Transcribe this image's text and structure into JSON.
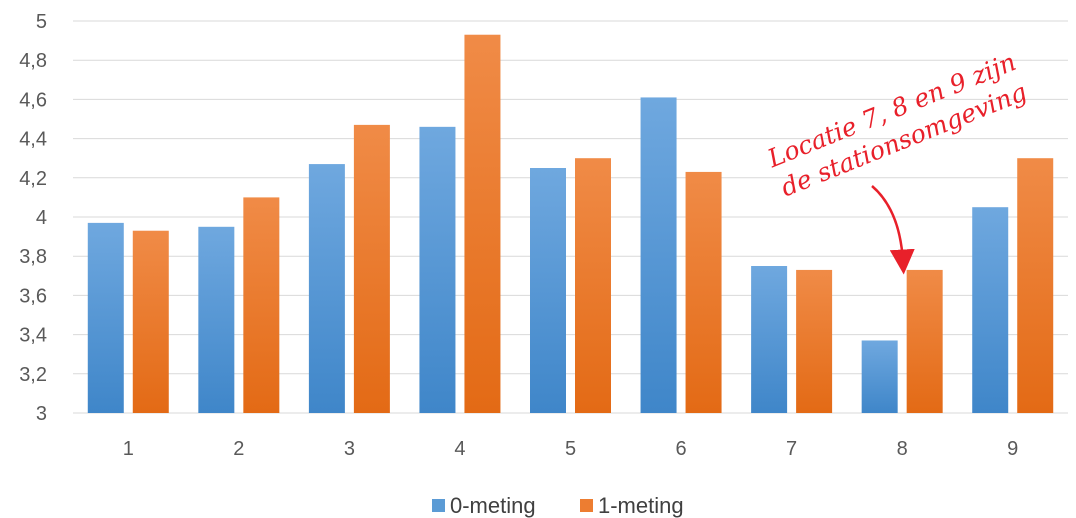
{
  "chart_data": {
    "type": "bar",
    "categories": [
      "1",
      "2",
      "3",
      "4",
      "5",
      "6",
      "7",
      "8",
      "9"
    ],
    "series": [
      {
        "name": "0-meting",
        "color": "#5b9bd5",
        "values": [
          3.97,
          3.95,
          4.27,
          4.46,
          4.25,
          4.61,
          3.75,
          3.37,
          4.05
        ]
      },
      {
        "name": "1-meting",
        "color": "#ed7d31",
        "values": [
          3.93,
          4.1,
          4.47,
          4.93,
          4.3,
          4.23,
          3.73,
          3.73,
          4.3
        ]
      }
    ],
    "ylim": [
      3,
      5
    ],
    "yticks": [
      "3",
      "3,2",
      "3,4",
      "3,6",
      "3,8",
      "4",
      "4,2",
      "4,4",
      "4,6",
      "4,8",
      "5"
    ],
    "grid": true,
    "legend": "bottom",
    "annotation": {
      "lines": [
        "Locatie 7, 8 en 9 zijn",
        "de stationsomgeving"
      ],
      "color": "#e8202a",
      "points_to_category": "8"
    }
  }
}
